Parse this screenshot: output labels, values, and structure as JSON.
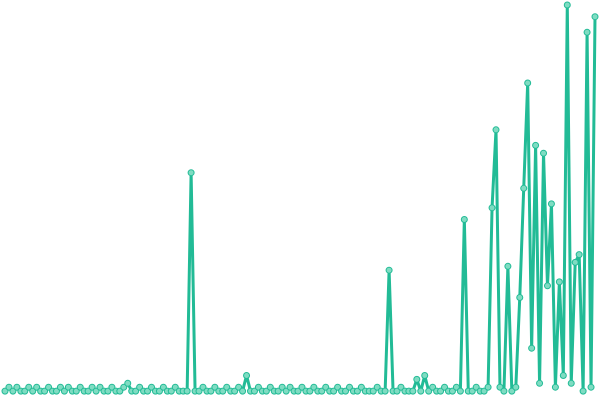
{
  "chart_data": {
    "type": "line",
    "x": [
      0,
      1,
      2,
      3,
      4,
      5,
      6,
      7,
      8,
      9,
      10,
      11,
      12,
      13,
      14,
      15,
      16,
      17,
      18,
      19,
      20,
      21,
      22,
      23,
      24,
      25,
      26,
      27,
      28,
      29,
      30,
      31,
      32,
      33,
      34,
      35,
      36,
      37,
      38,
      39,
      40,
      41,
      42,
      43,
      44,
      45,
      46,
      47,
      48,
      49,
      50,
      51,
      52,
      53,
      54,
      55,
      56,
      57,
      58,
      59,
      60,
      61,
      62,
      63,
      64,
      65,
      66,
      67,
      68,
      69,
      70,
      71,
      72,
      73,
      74,
      75,
      76,
      77,
      78,
      79,
      80,
      81,
      82,
      83,
      84,
      85,
      86,
      87,
      88,
      89,
      90,
      91,
      92,
      93,
      94,
      95,
      96,
      97,
      98,
      99,
      100,
      101,
      102,
      103,
      104,
      105,
      106,
      107,
      108,
      109,
      110,
      111,
      112,
      113,
      114,
      115,
      116,
      117,
      118,
      119,
      120,
      121,
      122,
      123,
      124,
      125,
      126,
      127,
      128,
      129,
      130,
      131,
      132,
      133,
      134,
      135,
      136,
      137,
      138,
      139,
      140,
      141,
      142,
      143,
      144,
      145,
      146,
      147,
      148,
      149
    ],
    "values": [
      1,
      2,
      1,
      2,
      1,
      1,
      2,
      1,
      2,
      1,
      1,
      2,
      1,
      1,
      2,
      1,
      2,
      1,
      1,
      2,
      1,
      1,
      2,
      1,
      2,
      1,
      1,
      2,
      1,
      1,
      2,
      3,
      1,
      1,
      2,
      1,
      1,
      2,
      1,
      1,
      2,
      1,
      1,
      2,
      1,
      1,
      1,
      57,
      1,
      1,
      2,
      1,
      1,
      2,
      1,
      1,
      2,
      1,
      1,
      2,
      1,
      5,
      1,
      1,
      2,
      1,
      1,
      2,
      1,
      1,
      2,
      1,
      2,
      1,
      1,
      2,
      1,
      1,
      2,
      1,
      1,
      2,
      1,
      1,
      2,
      1,
      1,
      2,
      1,
      1,
      2,
      1,
      1,
      1,
      2,
      1,
      1,
      32,
      1,
      1,
      2,
      1,
      1,
      1,
      4,
      1,
      5,
      1,
      2,
      1,
      1,
      2,
      1,
      1,
      2,
      1,
      45,
      1,
      1,
      2,
      1,
      1,
      2,
      48,
      68,
      2,
      1,
      33,
      1,
      2,
      25,
      53,
      80,
      12,
      64,
      3,
      62,
      28,
      49,
      2,
      29,
      5,
      100,
      3,
      34,
      36,
      1,
      93,
      2,
      97
    ],
    "color": "#22bb96",
    "xlim": [
      0,
      149
    ],
    "ylim": [
      0,
      100
    ]
  }
}
